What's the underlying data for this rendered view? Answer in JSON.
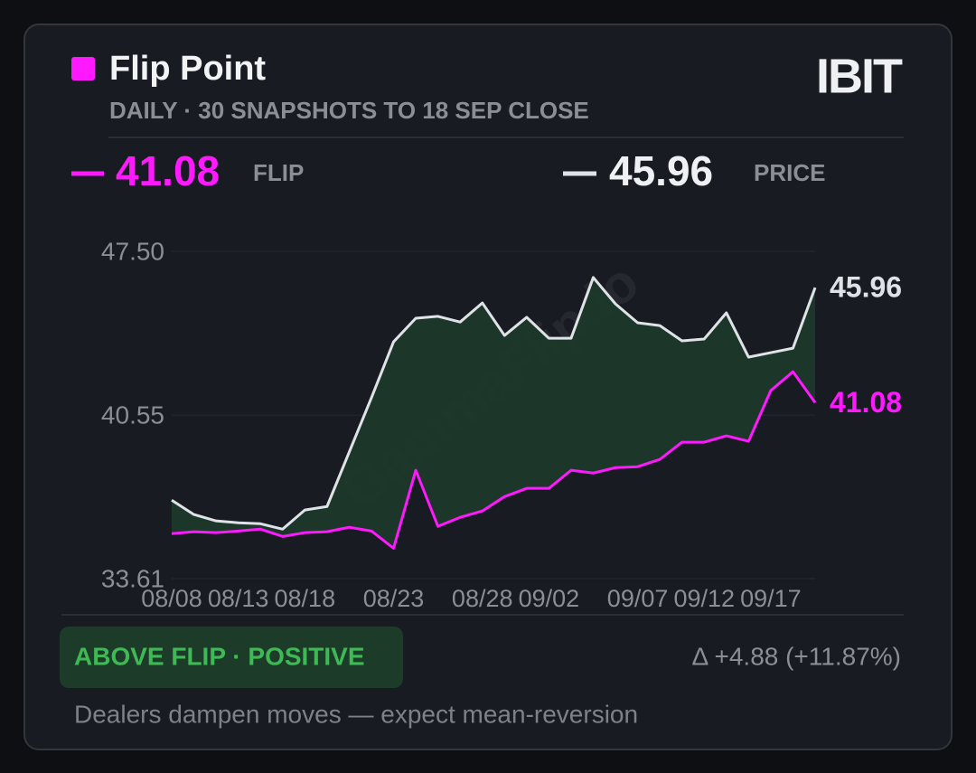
{
  "header": {
    "title": "Flip Point",
    "subtitle": "DAILY · 30 SNAPSHOTS TO 18 SEP CLOSE",
    "ticker": "IBIT"
  },
  "readouts": {
    "flip_label": "FLIP",
    "price_label": "PRICE"
  },
  "watermark": "GammaFlip.io",
  "chart_data": {
    "type": "line",
    "categories": [
      "08/08",
      null,
      null,
      "08/13",
      null,
      null,
      "08/18",
      null,
      null,
      null,
      "08/23",
      null,
      null,
      null,
      "08/28",
      null,
      null,
      "09/02",
      null,
      null,
      null,
      "09/07",
      null,
      null,
      "09/12",
      null,
      null,
      "09/17",
      null,
      null
    ],
    "series": [
      {
        "name": "PRICE",
        "color": "#dfe3e8",
        "values": [
          36.94,
          36.33,
          36.06,
          35.98,
          35.94,
          35.71,
          36.52,
          36.67,
          38.98,
          41.28,
          43.66,
          44.66,
          44.74,
          44.5,
          45.31,
          43.93,
          44.7,
          43.81,
          43.81,
          46.39,
          45.27,
          44.47,
          44.35,
          43.7,
          43.78,
          44.89,
          43.01,
          43.2,
          43.39,
          45.96
        ]
      },
      {
        "name": "FLIP",
        "color": "#ff19ff",
        "values": [
          35.52,
          35.6,
          35.56,
          35.63,
          35.71,
          35.4,
          35.56,
          35.6,
          35.79,
          35.63,
          34.9,
          38.21,
          35.83,
          36.21,
          36.48,
          37.09,
          37.44,
          37.44,
          38.21,
          38.09,
          38.32,
          38.36,
          38.67,
          39.4,
          39.4,
          39.67,
          39.44,
          41.59,
          42.39,
          41.08
        ]
      }
    ],
    "area_color": "#1d3a2a",
    "ylim": [
      33.61,
      47.5
    ],
    "yticks": [
      33.61,
      40.55,
      {
        "value": 47.5,
        "label": "47.50"
      }
    ],
    "grid": true
  },
  "footer": {
    "status": "ABOVE FLIP · POSITIVE",
    "delta": "Δ +4.88 (+11.87%)",
    "note": "Dealers dampen moves — expect mean-reversion"
  }
}
